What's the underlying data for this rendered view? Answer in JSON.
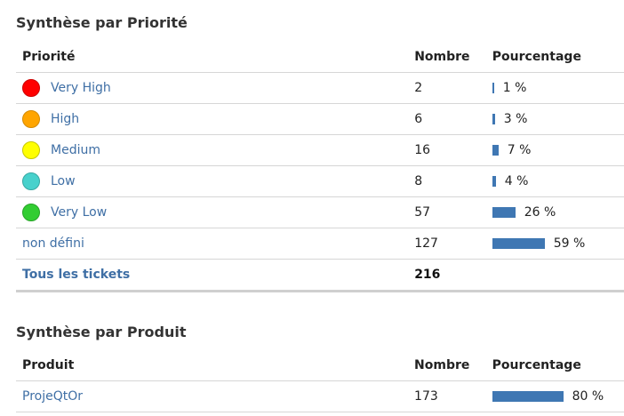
{
  "priority_section": {
    "title": "Synthèse par Priorité",
    "headers": {
      "label": "Priorité",
      "count": "Nombre",
      "percent": "Pourcentage"
    },
    "rows": [
      {
        "label": "Very High",
        "count": "2",
        "percent_label": "1 %",
        "percent_value": 1,
        "color": "#ff0000",
        "icon": "very-high-priority-dot-icon"
      },
      {
        "label": "High",
        "count": "6",
        "percent_label": "3 %",
        "percent_value": 3,
        "color": "#ffa500",
        "icon": "high-priority-dot-icon"
      },
      {
        "label": "Medium",
        "count": "16",
        "percent_label": "7 %",
        "percent_value": 7,
        "color": "#ffff00",
        "icon": "medium-priority-dot-icon"
      },
      {
        "label": "Low",
        "count": "8",
        "percent_label": "4 %",
        "percent_value": 4,
        "color": "#48d1cc",
        "icon": "low-priority-dot-icon"
      },
      {
        "label": "Very Low",
        "count": "57",
        "percent_label": "26 %",
        "percent_value": 26,
        "color": "#32cd32",
        "icon": "very-low-priority-dot-icon"
      },
      {
        "label": "non défini",
        "count": "127",
        "percent_label": "59 %",
        "percent_value": 59,
        "color": "",
        "icon": ""
      }
    ],
    "total": {
      "label": "Tous les tickets",
      "count": "216"
    }
  },
  "product_section": {
    "title": "Synthèse par Produit",
    "headers": {
      "label": "Produit",
      "count": "Nombre",
      "percent": "Pourcentage"
    },
    "rows": [
      {
        "label": "ProjeQtOr",
        "count": "173",
        "percent_label": "80 %",
        "percent_value": 80
      }
    ]
  },
  "colors": {
    "link": "#3f6fa5",
    "bar": "#3f77b3",
    "border": "#d6d6d6"
  }
}
